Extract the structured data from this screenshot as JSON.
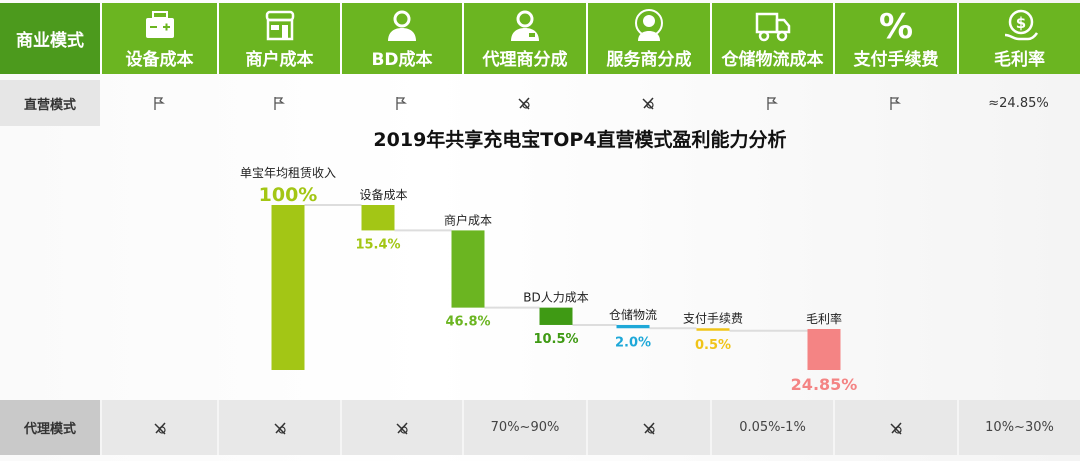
{
  "header": {
    "corner": "商业模式",
    "columns": [
      {
        "label": "设备成本",
        "icon": "battery-icon"
      },
      {
        "label": "商户成本",
        "icon": "store-icon"
      },
      {
        "label": "BD成本",
        "icon": "person-icon"
      },
      {
        "label": "代理商分成",
        "icon": "agent-icon"
      },
      {
        "label": "服务商分成",
        "icon": "service-person-icon"
      },
      {
        "label": "仓储物流成本",
        "icon": "truck-icon"
      },
      {
        "label": "支付手续费",
        "icon": "percent-icon"
      },
      {
        "label": "毛利率",
        "icon": "money-hand-icon"
      }
    ]
  },
  "rows": [
    {
      "label": "直营模式",
      "cells": [
        {
          "icon": "flag-icon"
        },
        {
          "icon": "flag-icon"
        },
        {
          "icon": "flag-icon"
        },
        {
          "icon": "cross-icon"
        },
        {
          "icon": "cross-icon"
        },
        {
          "icon": "flag-icon"
        },
        {
          "icon": "flag-icon"
        },
        {
          "text": "≈24.85%"
        }
      ]
    },
    {
      "label": "代理模式",
      "cells": [
        {
          "icon": "cross-icon"
        },
        {
          "icon": "cross-icon"
        },
        {
          "icon": "cross-icon"
        },
        {
          "text": "70%~90%"
        },
        {
          "icon": "cross-icon"
        },
        {
          "text": "0.05%-1%"
        },
        {
          "icon": "cross-icon"
        },
        {
          "text": "10%~30%"
        }
      ]
    }
  ],
  "colors": {
    "header": "#6bb521",
    "corner": "#4c9a1d"
  },
  "chart_data": {
    "type": "waterfall",
    "title": "2019年共享充电宝TOP4直营模式盈利能力分析",
    "categories": [
      "单宝年均租赁收入",
      "设备成本",
      "商户成本",
      "BD人力成本",
      "仓储物流",
      "支付手续费",
      "毛利率"
    ],
    "values": [
      100,
      15.4,
      46.8,
      10.5,
      2.0,
      0.5,
      24.85
    ],
    "value_labels": [
      "100%",
      "15.4%",
      "46.8%",
      "10.5%",
      "2.0%",
      "0.5%",
      "24.85%"
    ],
    "kinds": [
      "total",
      "decrease",
      "decrease",
      "decrease",
      "decrease",
      "decrease",
      "total"
    ],
    "colors": [
      "#a3c615",
      "#a3c615",
      "#6bb521",
      "#3f9a14",
      "#1ea8d8",
      "#f0c419",
      "#f48484"
    ],
    "ylim": [
      0,
      100
    ]
  }
}
